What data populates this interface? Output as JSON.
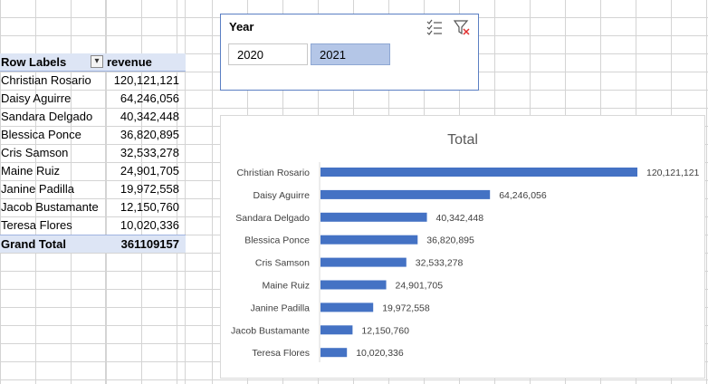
{
  "pivot": {
    "header": {
      "row_labels": "Row Labels",
      "value_label": "revenue"
    },
    "rows": [
      {
        "name": "Christian Rosario",
        "value": "120,121,121"
      },
      {
        "name": "Daisy Aguirre",
        "value": "64,246,056"
      },
      {
        "name": "Sandara Delgado",
        "value": "40,342,448"
      },
      {
        "name": "Blessica Ponce",
        "value": "36,820,895"
      },
      {
        "name": "Cris Samson",
        "value": "32,533,278"
      },
      {
        "name": "Maine Ruiz",
        "value": "24,901,705"
      },
      {
        "name": "Janine Padilla",
        "value": "19,972,558"
      },
      {
        "name": "Jacob Bustamante",
        "value": "12,150,760"
      },
      {
        "name": "Teresa Flores",
        "value": "10,020,336"
      }
    ],
    "grand_total": {
      "label": "Grand Total",
      "value": "361109157"
    }
  },
  "slicer": {
    "title": "Year",
    "items": [
      {
        "label": "2020",
        "selected": false
      },
      {
        "label": "2021",
        "selected": true
      }
    ],
    "icons": [
      "multi-select-icon",
      "clear-filter-icon"
    ]
  },
  "colors": {
    "bar": "#4472c4",
    "header_fill": "#dde5f5",
    "slicer_selected": "#b4c6e7",
    "slicer_border": "#5b7fc3",
    "clear_filter_x": "#e03030"
  },
  "chart_data": {
    "type": "bar",
    "orientation": "horizontal",
    "title": "Total",
    "categories": [
      "Christian Rosario",
      "Daisy Aguirre",
      "Sandara Delgado",
      "Blessica Ponce",
      "Cris Samson",
      "Maine Ruiz",
      "Janine Padilla",
      "Jacob Bustamante",
      "Teresa Flores"
    ],
    "values": [
      120121121,
      64246056,
      40342448,
      36820895,
      32533278,
      24901705,
      19972558,
      12150760,
      10020336
    ],
    "labels": [
      "120,121,121",
      "64,246,056",
      "40,342,448",
      "36,820,895",
      "32,533,278",
      "24,901,705",
      "19,972,558",
      "12,150,760",
      "10,020,336"
    ],
    "xlim": [
      0,
      120121121
    ],
    "legend": "none",
    "grid": false
  }
}
